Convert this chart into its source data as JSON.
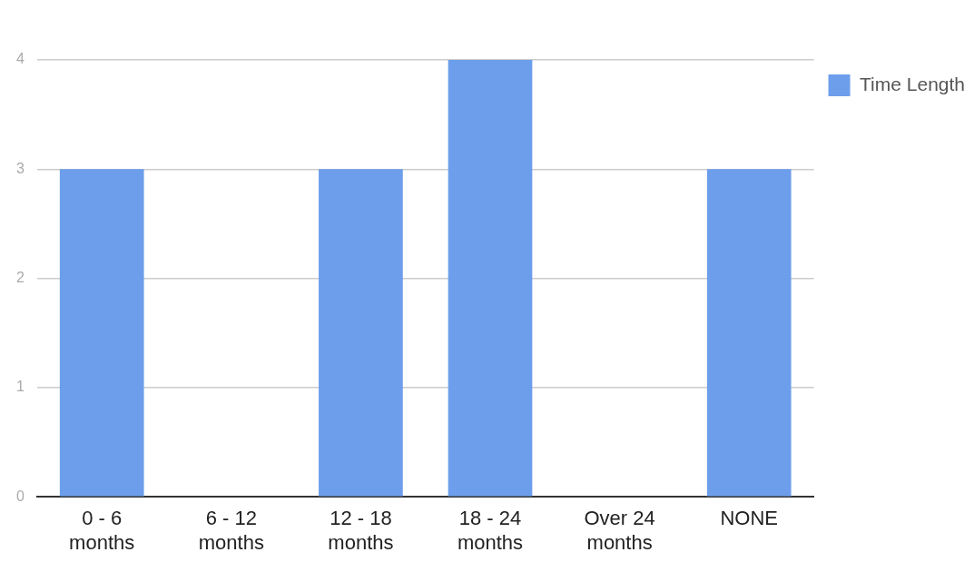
{
  "chart_data": {
    "type": "bar",
    "categories": [
      "0 - 6 months",
      "6 - 12 months",
      "12 - 18 months",
      "18 - 24 months",
      "Over 24 months",
      "NONE"
    ],
    "series": [
      {
        "name": "Time Length",
        "color": "#6d9eeb",
        "values": [
          3,
          0,
          3,
          4,
          0,
          3
        ]
      }
    ],
    "ylim": [
      0,
      4
    ],
    "yticks": [
      0,
      1,
      2,
      3,
      4
    ],
    "grid": "y",
    "legend": "top right"
  }
}
